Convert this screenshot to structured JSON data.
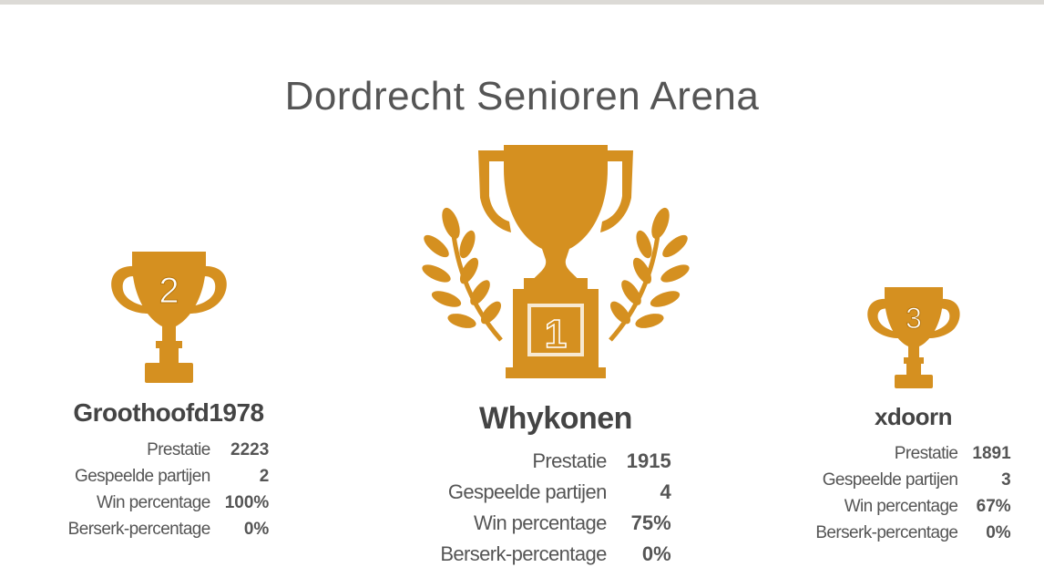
{
  "title": "Dordrecht Senioren Arena",
  "colors": {
    "trophy": "#d59020",
    "text": "#444444",
    "top_bar": "#dcdad6"
  },
  "stat_labels": {
    "performance": "Prestatie",
    "games_played": "Gespeelde partijen",
    "win_rate": "Win percentage",
    "berserk_rate": "Berserk-percentage"
  },
  "podium": {
    "first": {
      "rank": "1",
      "icon": "trophy-laurel-icon",
      "name": "Whykonen",
      "performance": "1915",
      "games_played": "4",
      "win_rate": "75%",
      "berserk_rate": "0%"
    },
    "second": {
      "rank": "2",
      "icon": "trophy-icon",
      "name": "Groothoofd1978",
      "performance": "2223",
      "games_played": "2",
      "win_rate": "100%",
      "berserk_rate": "0%"
    },
    "third": {
      "rank": "3",
      "icon": "trophy-icon",
      "name": "xdoorn",
      "performance": "1891",
      "games_played": "3",
      "win_rate": "67%",
      "berserk_rate": "0%"
    }
  }
}
